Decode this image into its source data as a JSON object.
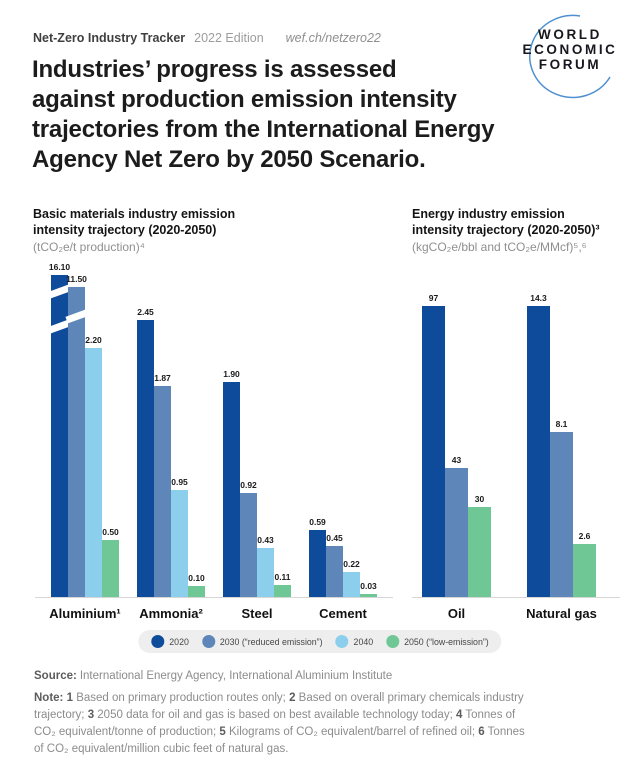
{
  "header": {
    "tracker": "Net-Zero Industry Tracker",
    "edition": "2022 Edition",
    "url": "wef.ch/netzero22"
  },
  "logo": {
    "lines": [
      "WORLD",
      "ECONOMIC",
      "FORUM"
    ],
    "arc_color": "#4e90d0"
  },
  "title": {
    "lines": [
      "Industries’ progress is assessed",
      "against production emission intensity",
      "trajectories from the International Energy",
      "Agency Net Zero by 2050 Scenario."
    ]
  },
  "charts": [
    {
      "title_lines": [
        "Basic materials industry emission",
        "intensity trajectory (2020-2050)"
      ],
      "unit": "(tCO₂e/t production)⁴",
      "groups": [
        {
          "label": "Aluminium¹",
          "bars": [
            {
              "series": 0,
              "value": 16.1,
              "label": "16.10",
              "broken": true
            },
            {
              "series": 1,
              "value": 11.5,
              "label": "11.50",
              "broken": true
            },
            {
              "series": 2,
              "value": 2.2,
              "label": "2.20"
            },
            {
              "series": 3,
              "value": 0.5,
              "label": "0.50"
            }
          ]
        },
        {
          "label": "Ammonia²",
          "bars": [
            {
              "series": 0,
              "value": 2.45,
              "label": "2.45"
            },
            {
              "series": 1,
              "value": 1.87,
              "label": "1.87"
            },
            {
              "series": 2,
              "value": 0.95,
              "label": "0.95"
            },
            {
              "series": 3,
              "value": 0.1,
              "label": "0.10"
            }
          ]
        },
        {
          "label": "Steel",
          "bars": [
            {
              "series": 0,
              "value": 1.9,
              "label": "1.90"
            },
            {
              "series": 1,
              "value": 0.92,
              "label": "0.92"
            },
            {
              "series": 2,
              "value": 0.43,
              "label": "0.43"
            },
            {
              "series": 3,
              "value": 0.11,
              "label": "0.11"
            }
          ]
        },
        {
          "label": "Cement",
          "bars": [
            {
              "series": 0,
              "value": 0.59,
              "label": "0.59"
            },
            {
              "series": 1,
              "value": 0.45,
              "label": "0.45"
            },
            {
              "series": 2,
              "value": 0.22,
              "label": "0.22"
            },
            {
              "series": 3,
              "value": 0.03,
              "label": "0.03"
            }
          ]
        }
      ]
    },
    {
      "title_lines": [
        "Energy industry emission",
        "intensity trajectory (2020-2050)³"
      ],
      "unit": "(kgCO₂e/bbl and tCO₂e/MMcf)⁵,⁶",
      "groups": [
        {
          "label": "Oil",
          "bars": [
            {
              "series": 0,
              "value": 97,
              "label": "97"
            },
            {
              "series": 1,
              "value": 43,
              "label": "43"
            },
            {
              "series": 3,
              "value": 30,
              "label": "30"
            }
          ]
        },
        {
          "label": "Natural gas",
          "bars": [
            {
              "series": 0,
              "value": 14.3,
              "label": "14.3"
            },
            {
              "series": 1,
              "value": 8.1,
              "label": "8.1"
            },
            {
              "series": 3,
              "value": 2.6,
              "label": "2.6"
            }
          ]
        }
      ]
    }
  ],
  "legend": {
    "items": [
      {
        "label": "2020",
        "color": "#0e4c9b"
      },
      {
        "label": "2030 (“reduced emission”)",
        "color": "#5e86b9"
      },
      {
        "label": "2040",
        "color": "#8ccfec"
      },
      {
        "label": "2050 (“low-emission”)",
        "color": "#6fc796"
      }
    ]
  },
  "footer": {
    "source_label": "Source:",
    "source_text": "International Energy Agency, International Aluminium Institute",
    "note_parts": [
      {
        "t": "Note:",
        "b": true
      },
      {
        "t": " "
      },
      {
        "t": "1",
        "b": true
      },
      {
        "t": " Based on primary production routes only; "
      },
      {
        "t": "2",
        "b": true
      },
      {
        "t": " Based on overall primary chemicals industry trajectory; "
      },
      {
        "t": "3",
        "b": true
      },
      {
        "t": " 2050 data for oil and gas is based on best available technology today; "
      },
      {
        "t": "4",
        "b": true
      },
      {
        "t": " Tonnes of CO₂ equivalent/tonne of production; "
      },
      {
        "t": "5",
        "b": true
      },
      {
        "t": " Kilograms of CO₂ equivalent/barrel of refined oil; "
      },
      {
        "t": "6",
        "b": true
      },
      {
        "t": " Tonnes of CO₂ equivalent/million cubic feet of natural gas."
      }
    ]
  },
  "chart_data": [
    {
      "type": "bar",
      "title": "Basic materials industry emission intensity trajectory (2020-2050)",
      "ylabel": "tCO₂e/t production",
      "categories": [
        "Aluminium",
        "Ammonia",
        "Steel",
        "Cement"
      ],
      "series": [
        {
          "name": "2020",
          "values": [
            16.1,
            2.45,
            1.9,
            0.59
          ]
        },
        {
          "name": "2030 (“reduced emission”)",
          "values": [
            11.5,
            1.87,
            0.92,
            0.45
          ]
        },
        {
          "name": "2040",
          "values": [
            2.2,
            0.95,
            0.43,
            0.22
          ]
        },
        {
          "name": "2050 (“low-emission”)",
          "values": [
            0.5,
            0.1,
            0.11,
            0.03
          ]
        }
      ],
      "axis_break": "y-axis broken for Aluminium 2020 (16.10) and 2030 (11.50) bars",
      "grid": false,
      "legend_position": "bottom"
    },
    {
      "type": "bar",
      "title": "Energy industry emission intensity trajectory (2020-2050)",
      "ylabel": "kgCO₂e/bbl (Oil) and tCO₂e/MMcf (Natural gas)",
      "categories": [
        "Oil",
        "Natural gas"
      ],
      "series": [
        {
          "name": "2020",
          "values": [
            97,
            14.3
          ]
        },
        {
          "name": "2030 (“reduced emission”)",
          "values": [
            43,
            8.1
          ]
        },
        {
          "name": "2040",
          "values": [
            null,
            null
          ]
        },
        {
          "name": "2050 (“low-emission”)",
          "values": [
            30,
            2.6
          ]
        }
      ],
      "note": "each category normalized to its own unit scale",
      "grid": false,
      "legend_position": "bottom"
    }
  ]
}
